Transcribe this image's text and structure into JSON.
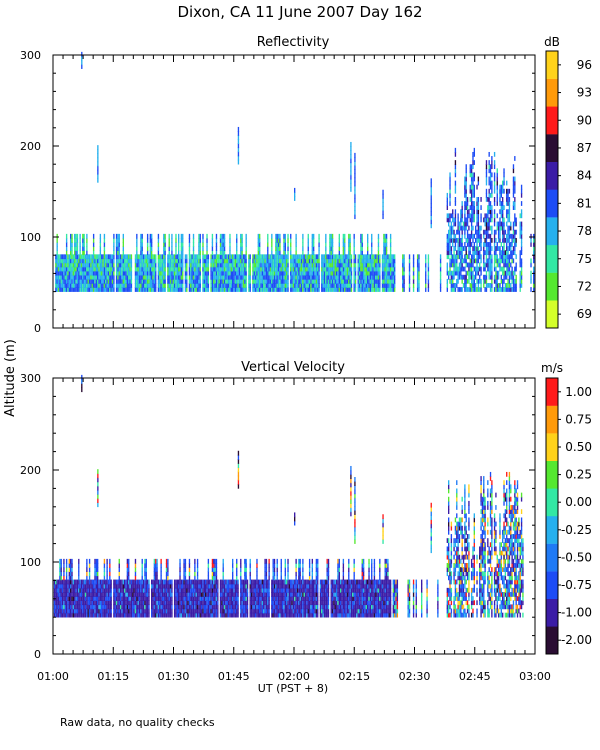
{
  "figure": {
    "title": "Dixon, CA 11 June 2007  Day 162",
    "ylabel": "Altitude (m)",
    "xlabel": "UT  (PST + 8)",
    "note": "Raw data, no quality checks"
  },
  "chart_data": [
    {
      "type": "heatmap",
      "title": "Reflectivity",
      "xlabel": "UT  (PST + 8)",
      "ylabel": "Altitude (m)",
      "x_range_minutes_from_0100": [
        0,
        120
      ],
      "x_tick_labels": [
        "01:00",
        "01:15",
        "01:30",
        "01:45",
        "02:00",
        "02:15",
        "02:30",
        "02:45",
        "03:00"
      ],
      "ylim": [
        0,
        300
      ],
      "y_ticks": [
        0,
        100,
        200,
        300
      ],
      "colorbar": {
        "unit": "dB",
        "labels": [
          "69",
          "72",
          "75",
          "78",
          "81",
          "84",
          "87",
          "90",
          "93",
          "96"
        ],
        "colors": [
          "#d4ff2a",
          "#55e830",
          "#33e8a4",
          "#26b0ee",
          "#1d4cf5",
          "#3b1ca6",
          "#2a0d33",
          "#ff1a1a",
          "#ff9a0a",
          "#ffd21a"
        ]
      },
      "description": "Echoes mostly 40-100 m altitude from 01:00 to 02:23, then sparse columns; dense echoes up to ~200 m between 02:38 and 02:58."
    },
    {
      "type": "heatmap",
      "title": "Vertical Velocity",
      "xlabel": "UT  (PST + 8)",
      "ylabel": "Altitude (m)",
      "x_range_minutes_from_0100": [
        0,
        120
      ],
      "x_tick_labels": [
        "01:00",
        "01:15",
        "01:30",
        "01:45",
        "02:00",
        "02:15",
        "02:30",
        "02:45",
        "03:00"
      ],
      "ylim": [
        0,
        300
      ],
      "y_ticks": [
        0,
        100,
        200,
        300
      ],
      "colorbar": {
        "unit": "m/s",
        "labels": [
          "-2.00",
          "-1.00",
          "-0.75",
          "-0.50",
          "-0.25",
          "0.00",
          "0.25",
          "0.50",
          "0.75",
          "1.00"
        ],
        "colors": [
          "#2a0d33",
          "#3b1ca6",
          "#1d4cf5",
          "#1f7af5",
          "#26b0ee",
          "#33e8a4",
          "#55e830",
          "#ffd21a",
          "#ff9a0a",
          "#ff1a1a"
        ]
      },
      "description": "Mostly downward (-1.00 to -0.75 m/s) velocities in the 40-100 m layer; mixed positive/negative values in high columns after 02:38."
    }
  ]
}
